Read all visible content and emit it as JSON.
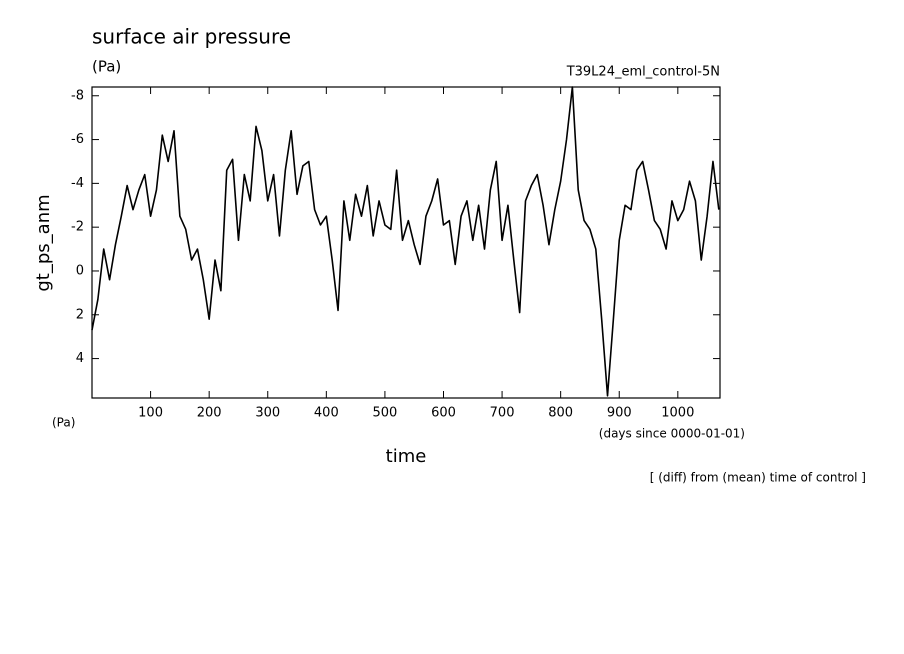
{
  "chart_data": {
    "type": "line",
    "title": "surface air pressure",
    "subtitle": "(Pa)",
    "run_label": "T39L24_eml_control-5N",
    "y_label": "gt_ps_anm",
    "y_unit": "(Pa)",
    "x_label": "time",
    "x_unit": "(days since 0000-01-01)",
    "annotation": "[ (diff) from (mean) time of control ]",
    "x": [
      0,
      10,
      20,
      30,
      40,
      50,
      60,
      70,
      80,
      90,
      100,
      110,
      120,
      130,
      140,
      150,
      160,
      170,
      180,
      190,
      200,
      210,
      220,
      230,
      240,
      250,
      260,
      270,
      280,
      290,
      300,
      310,
      320,
      330,
      340,
      350,
      360,
      370,
      380,
      390,
      400,
      410,
      420,
      430,
      440,
      450,
      460,
      470,
      480,
      490,
      500,
      510,
      520,
      530,
      540,
      550,
      560,
      570,
      580,
      590,
      600,
      610,
      620,
      630,
      640,
      650,
      660,
      670,
      680,
      690,
      700,
      710,
      720,
      730,
      740,
      750,
      760,
      770,
      780,
      790,
      800,
      810,
      820,
      830,
      840,
      850,
      860,
      870,
      880,
      890,
      900,
      910,
      920,
      930,
      940,
      950,
      960,
      970,
      980,
      990,
      1000,
      1010,
      1020,
      1030,
      1040,
      1050,
      1060,
      1070
    ],
    "series": [
      {
        "name": "gt_ps_anm",
        "color": "#000000",
        "values": [
          2.7,
          1.3,
          -1.0,
          0.4,
          -1.2,
          -2.5,
          -3.9,
          -2.8,
          -3.7,
          -4.4,
          -2.5,
          -3.7,
          -6.2,
          -5.0,
          -6.4,
          -2.5,
          -1.9,
          -0.5,
          -1.0,
          0.4,
          2.2,
          -0.5,
          0.9,
          -4.6,
          -5.1,
          -1.4,
          -4.4,
          -3.2,
          -6.6,
          -5.5,
          -3.2,
          -4.4,
          -1.6,
          -4.6,
          -6.4,
          -3.5,
          -4.8,
          -5.0,
          -2.8,
          -2.1,
          -2.5,
          -0.5,
          1.8,
          -3.2,
          -1.4,
          -3.5,
          -2.5,
          -3.9,
          -1.6,
          -3.2,
          -2.1,
          -1.9,
          -4.6,
          -1.4,
          -2.3,
          -1.2,
          -0.3,
          -2.5,
          -3.2,
          -4.2,
          -2.1,
          -2.3,
          -0.3,
          -2.5,
          -3.2,
          -1.4,
          -3.0,
          -1.0,
          -3.7,
          -5.0,
          -1.4,
          -3.0,
          -0.5,
          1.9,
          -3.2,
          -3.9,
          -4.4,
          -3.0,
          -1.2,
          -2.8,
          -4.1,
          -6.0,
          -8.4,
          -3.7,
          -2.3,
          -1.9,
          -1.0,
          2.2,
          5.7,
          2.2,
          -1.4,
          -3.0,
          -2.8,
          -4.6,
          -5.0,
          -3.7,
          -2.3,
          -1.9,
          -1.0,
          -3.2,
          -2.3,
          -2.8,
          -4.1,
          -3.2,
          -0.5,
          -2.5,
          -5.0,
          -2.8
        ]
      }
    ],
    "xlim": [
      0,
      1072
    ],
    "xticks": [
      100,
      200,
      300,
      400,
      500,
      600,
      700,
      800,
      900,
      1000
    ],
    "ylim": [
      5.8,
      -8.4
    ],
    "yticks": [
      -8,
      -6,
      -4,
      -2,
      0,
      2,
      4
    ],
    "grid": false
  }
}
